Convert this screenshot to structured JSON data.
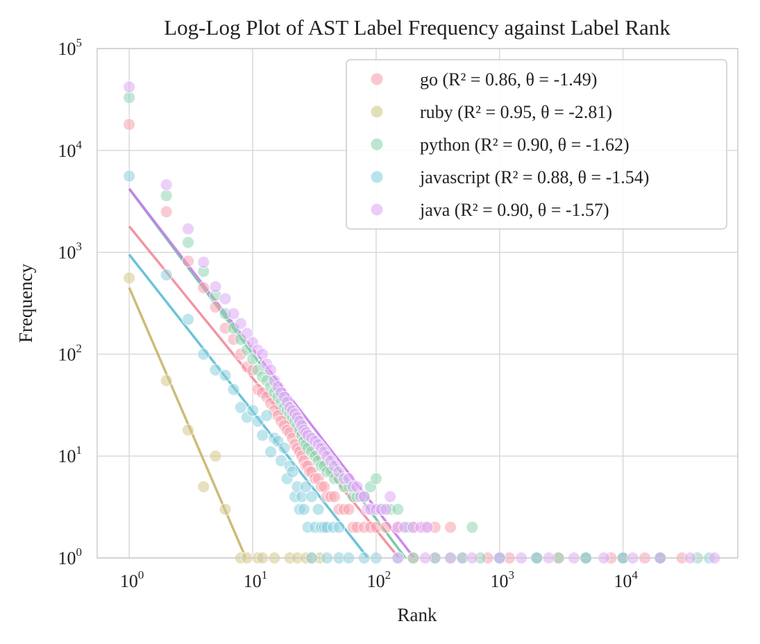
{
  "chart_data": {
    "type": "scatter",
    "title": "Log-Log Plot of AST Label Frequency against Label Rank",
    "xlabel": "Rank",
    "ylabel": "Frequency",
    "xscale": "log",
    "yscale": "log",
    "xlim": [
      0.55,
      85000
    ],
    "ylim": [
      1,
      100000
    ],
    "x_ticks": [
      {
        "base": "10",
        "exp": "0",
        "value": 1
      },
      {
        "base": "10",
        "exp": "1",
        "value": 10
      },
      {
        "base": "10",
        "exp": "2",
        "value": 100
      },
      {
        "base": "10",
        "exp": "3",
        "value": 1000
      },
      {
        "base": "10",
        "exp": "4",
        "value": 10000
      }
    ],
    "y_ticks": [
      {
        "base": "10",
        "exp": "0",
        "value": 1
      },
      {
        "base": "10",
        "exp": "1",
        "value": 10
      },
      {
        "base": "10",
        "exp": "2",
        "value": 100
      },
      {
        "base": "10",
        "exp": "3",
        "value": 1000
      },
      {
        "base": "10",
        "exp": "4",
        "value": 10000
      },
      {
        "base": "10",
        "exp": "5",
        "value": 100000
      }
    ],
    "grid": true,
    "legend_position": "top-right",
    "series": [
      {
        "name": "go (R² = 0.86, θ = -1.49)",
        "color": "#f7a1ae",
        "line_color": "#ef8a9a",
        "fit": {
          "intercept": 1800,
          "slope": -1.49
        },
        "points": [
          [
            1,
            18000
          ],
          [
            2,
            2500
          ],
          [
            3,
            820
          ],
          [
            4,
            450
          ],
          [
            5,
            290
          ],
          [
            6,
            180
          ],
          [
            7,
            140
          ],
          [
            8,
            100
          ],
          [
            9,
            75
          ],
          [
            10,
            70
          ],
          [
            11,
            45
          ],
          [
            12,
            42
          ],
          [
            13,
            38
          ],
          [
            14,
            33
          ],
          [
            15,
            28
          ],
          [
            16,
            25
          ],
          [
            17,
            22
          ],
          [
            18,
            20
          ],
          [
            19,
            18
          ],
          [
            20,
            17
          ],
          [
            21,
            15
          ],
          [
            22,
            13
          ],
          [
            23,
            12
          ],
          [
            24,
            11
          ],
          [
            25,
            10
          ],
          [
            26,
            9
          ],
          [
            27,
            8
          ],
          [
            28,
            8
          ],
          [
            29,
            7
          ],
          [
            30,
            7
          ],
          [
            32,
            6
          ],
          [
            34,
            6
          ],
          [
            36,
            5
          ],
          [
            38,
            5
          ],
          [
            40,
            4
          ],
          [
            43,
            4
          ],
          [
            46,
            4
          ],
          [
            50,
            3
          ],
          [
            55,
            3
          ],
          [
            60,
            3
          ],
          [
            65,
            2
          ],
          [
            70,
            2
          ],
          [
            80,
            2
          ],
          [
            90,
            2
          ],
          [
            100,
            2
          ],
          [
            120,
            2
          ],
          [
            150,
            2
          ],
          [
            200,
            2
          ],
          [
            250,
            2
          ],
          [
            300,
            2
          ],
          [
            400,
            2
          ],
          [
            200,
            1
          ],
          [
            300,
            1
          ],
          [
            500,
            1
          ],
          [
            800,
            1
          ],
          [
            1200,
            1
          ],
          [
            2000,
            1
          ],
          [
            3000,
            1
          ],
          [
            5000,
            1
          ],
          [
            8000,
            1
          ],
          [
            10000,
            1
          ],
          [
            15000,
            1
          ],
          [
            20000,
            1
          ],
          [
            30000,
            1
          ]
        ]
      },
      {
        "name": "ruby (R² = 0.95, θ = -2.81)",
        "color": "#d3c98a",
        "line_color": "#c6b56a",
        "fit": {
          "intercept": 450,
          "slope": -2.81
        },
        "points": [
          [
            1,
            560
          ],
          [
            2,
            55
          ],
          [
            3,
            18
          ],
          [
            4,
            5
          ],
          [
            5,
            10
          ],
          [
            6,
            3
          ],
          [
            8,
            1
          ],
          [
            9,
            1
          ],
          [
            11,
            1
          ],
          [
            12,
            1
          ],
          [
            15,
            1
          ],
          [
            20,
            1
          ],
          [
            23,
            1
          ],
          [
            27,
            1
          ],
          [
            30,
            1
          ],
          [
            35,
            1
          ]
        ]
      },
      {
        "name": "python (R² = 0.90, θ = -1.62)",
        "color": "#8fd5b2",
        "line_color": "#6cc59a",
        "fit": {
          "intercept": 4200,
          "slope": -1.62
        },
        "points": [
          [
            1,
            33000
          ],
          [
            2,
            3600
          ],
          [
            3,
            1250
          ],
          [
            4,
            650
          ],
          [
            5,
            380
          ],
          [
            6,
            250
          ],
          [
            7,
            180
          ],
          [
            8,
            140
          ],
          [
            9,
            110
          ],
          [
            10,
            90
          ],
          [
            11,
            70
          ],
          [
            12,
            60
          ],
          [
            13,
            55
          ],
          [
            14,
            48
          ],
          [
            15,
            42
          ],
          [
            16,
            38
          ],
          [
            17,
            34
          ],
          [
            18,
            30
          ],
          [
            19,
            28
          ],
          [
            20,
            26
          ],
          [
            21,
            24
          ],
          [
            22,
            22
          ],
          [
            23,
            20
          ],
          [
            24,
            18
          ],
          [
            25,
            16
          ],
          [
            26,
            14
          ],
          [
            27,
            13
          ],
          [
            28,
            12
          ],
          [
            30,
            11
          ],
          [
            32,
            10
          ],
          [
            34,
            9
          ],
          [
            36,
            8
          ],
          [
            38,
            8
          ],
          [
            40,
            7
          ],
          [
            43,
            7
          ],
          [
            46,
            6
          ],
          [
            50,
            6
          ],
          [
            55,
            5
          ],
          [
            60,
            5
          ],
          [
            65,
            4
          ],
          [
            70,
            4
          ],
          [
            80,
            4
          ],
          [
            90,
            5
          ],
          [
            100,
            6
          ],
          [
            110,
            3
          ],
          [
            130,
            3
          ],
          [
            150,
            3
          ],
          [
            180,
            2
          ],
          [
            600,
            2
          ],
          [
            200,
            1
          ],
          [
            400,
            1
          ],
          [
            700,
            1
          ],
          [
            1000,
            1
          ],
          [
            2000,
            1
          ],
          [
            3000,
            1
          ],
          [
            5000,
            1
          ],
          [
            10000,
            1
          ],
          [
            20000,
            1
          ],
          [
            40000,
            1
          ]
        ]
      },
      {
        "name": "javascript (R² = 0.88, θ = -1.54)",
        "color": "#8ad0df",
        "line_color": "#5bbcd3",
        "fit": {
          "intercept": 950,
          "slope": -1.54
        },
        "points": [
          [
            1,
            5600
          ],
          [
            2,
            600
          ],
          [
            3,
            220
          ],
          [
            4,
            100
          ],
          [
            5,
            70
          ],
          [
            6,
            62
          ],
          [
            7,
            45
          ],
          [
            8,
            30
          ],
          [
            9,
            24
          ],
          [
            10,
            28
          ],
          [
            11,
            22
          ],
          [
            12,
            16
          ],
          [
            13,
            25
          ],
          [
            14,
            11
          ],
          [
            15,
            15
          ],
          [
            16,
            14
          ],
          [
            17,
            9
          ],
          [
            18,
            12
          ],
          [
            19,
            6
          ],
          [
            20,
            8
          ],
          [
            21,
            7
          ],
          [
            22,
            4
          ],
          [
            23,
            5
          ],
          [
            24,
            3
          ],
          [
            25,
            4
          ],
          [
            26,
            3
          ],
          [
            27,
            5
          ],
          [
            28,
            2
          ],
          [
            30,
            4
          ],
          [
            32,
            2
          ],
          [
            34,
            3
          ],
          [
            36,
            2
          ],
          [
            38,
            2
          ],
          [
            40,
            2
          ],
          [
            45,
            2
          ],
          [
            50,
            2
          ],
          [
            30,
            1
          ],
          [
            40,
            1
          ],
          [
            50,
            1
          ],
          [
            60,
            1
          ],
          [
            80,
            1
          ],
          [
            100,
            1
          ],
          [
            150,
            1
          ],
          [
            300,
            1
          ],
          [
            500,
            1
          ],
          [
            1000,
            1
          ],
          [
            2000,
            1
          ],
          [
            5000,
            1
          ],
          [
            10000,
            1
          ],
          [
            20000,
            1
          ],
          [
            50000,
            1
          ]
        ]
      },
      {
        "name": "java (R² = 0.90, θ = -1.57)",
        "color": "#dfaaf5",
        "line_color": "#c77ceb",
        "fit": {
          "intercept": 4200,
          "slope": -1.57
        },
        "points": [
          [
            1,
            42000
          ],
          [
            2,
            4600
          ],
          [
            3,
            1700
          ],
          [
            4,
            800
          ],
          [
            5,
            460
          ],
          [
            6,
            350
          ],
          [
            7,
            250
          ],
          [
            8,
            200
          ],
          [
            9,
            160
          ],
          [
            10,
            130
          ],
          [
            11,
            110
          ],
          [
            12,
            100
          ],
          [
            13,
            80
          ],
          [
            14,
            70
          ],
          [
            15,
            55
          ],
          [
            16,
            48
          ],
          [
            17,
            42
          ],
          [
            18,
            38
          ],
          [
            19,
            34
          ],
          [
            20,
            30
          ],
          [
            21,
            28
          ],
          [
            22,
            26
          ],
          [
            23,
            24
          ],
          [
            24,
            22
          ],
          [
            25,
            20
          ],
          [
            26,
            18
          ],
          [
            27,
            17
          ],
          [
            28,
            16
          ],
          [
            30,
            15
          ],
          [
            32,
            14
          ],
          [
            34,
            13
          ],
          [
            36,
            12
          ],
          [
            38,
            11
          ],
          [
            40,
            10
          ],
          [
            43,
            9
          ],
          [
            46,
            8
          ],
          [
            50,
            7
          ],
          [
            55,
            6
          ],
          [
            60,
            6
          ],
          [
            65,
            5
          ],
          [
            70,
            5
          ],
          [
            75,
            4
          ],
          [
            80,
            4
          ],
          [
            85,
            3
          ],
          [
            90,
            3
          ],
          [
            100,
            3
          ],
          [
            110,
            3
          ],
          [
            120,
            3
          ],
          [
            130,
            4
          ],
          [
            150,
            2
          ],
          [
            170,
            2
          ],
          [
            200,
            2
          ],
          [
            230,
            2
          ],
          [
            260,
            2
          ],
          [
            150,
            1
          ],
          [
            250,
            1
          ],
          [
            400,
            1
          ],
          [
            600,
            1
          ],
          [
            1000,
            1
          ],
          [
            1500,
            1
          ],
          [
            2500,
            1
          ],
          [
            4000,
            1
          ],
          [
            7000,
            1
          ],
          [
            12000,
            1
          ],
          [
            20000,
            1
          ],
          [
            35000,
            1
          ],
          [
            55000,
            1
          ]
        ]
      }
    ]
  }
}
